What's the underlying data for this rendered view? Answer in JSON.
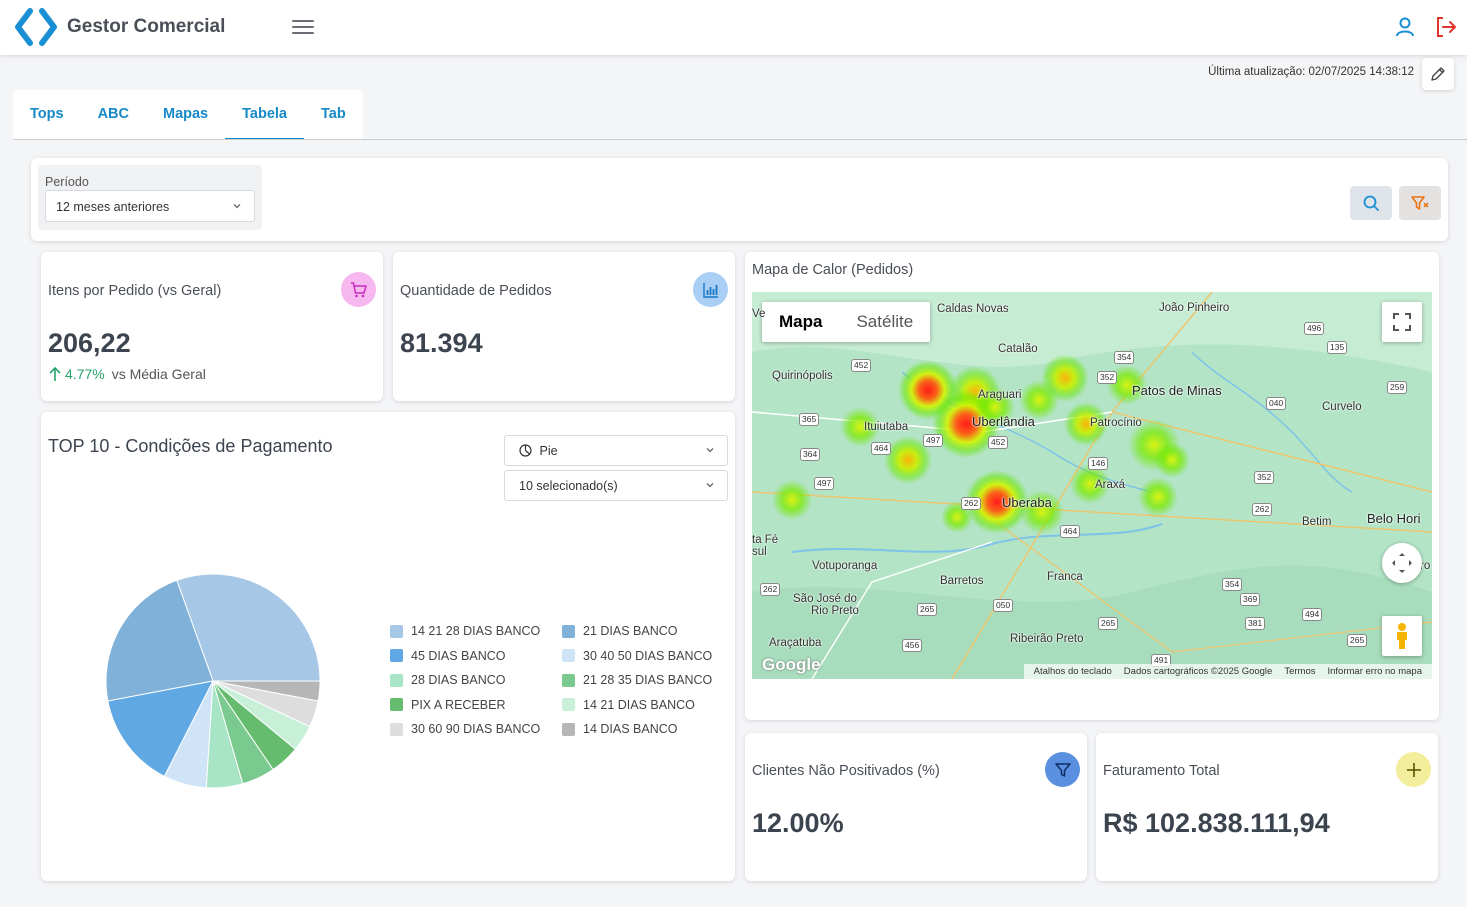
{
  "app": {
    "title": "Gestor Comercial"
  },
  "header": {
    "last_update": "Última atualização: 02/07/2025 14:38:12"
  },
  "tabs": [
    {
      "label": "Tops"
    },
    {
      "label": "ABC"
    },
    {
      "label": "Mapas"
    },
    {
      "label": "Tabela",
      "active": true
    },
    {
      "label": "Tab"
    }
  ],
  "filters": {
    "periodo_label": "Período",
    "periodo_value": "12 meses anteriores"
  },
  "kpis": {
    "itens_pedido": {
      "title": "Itens por Pedido (vs Geral)",
      "value": "206,22",
      "trend_pct": "4.77%",
      "trend_label": "vs Média Geral",
      "icon": "shopping-cart-icon",
      "color": "#f7b7ef"
    },
    "qtd_pedidos": {
      "title": "Quantidade de Pedidos",
      "value": "81.394",
      "icon": "bar-chart-icon",
      "color": "#a9cff5"
    },
    "clientes_np": {
      "title": "Clientes Não Positivados (%)",
      "value": "12.00%",
      "icon": "filter-icon",
      "color": "#5b8fe0"
    },
    "faturamento": {
      "title": "Faturamento Total",
      "value": "R$ 102.838.111,94",
      "icon": "plus-icon",
      "color": "#f3ee9c"
    }
  },
  "pie_card": {
    "title": "TOP 10 - Condições de Pagamento",
    "chart_type_value": "Pie",
    "selection_value": "10 selecionado(s)"
  },
  "chart_data": {
    "type": "pie",
    "title": "TOP 10 - Condições de Pagamento",
    "legend_position": "right",
    "categories": [
      "14 21 28 DIAS BANCO",
      "21 DIAS BANCO",
      "45 DIAS BANCO",
      "30 40 50 DIAS BANCO",
      "28 DIAS BANCO",
      "21 28 35 DIAS BANCO",
      "PIX A RECEBER",
      "14 21 DIAS BANCO",
      "30 60 90 DIAS BANCO",
      "14 DIAS BANCO"
    ],
    "values": [
      30.5,
      22.5,
      14.5,
      6.5,
      5.5,
      5.0,
      4.5,
      4.0,
      4.0,
      3.0
    ],
    "colors": [
      "#a6c8e6",
      "#7fb1d9",
      "#5fa8e3",
      "#cfe4f6",
      "#a8e5c6",
      "#7ac98e",
      "#66bc6e",
      "#c8f0d9",
      "#dddddd",
      "#b6b6b6"
    ]
  },
  "map_card": {
    "title": "Mapa de Calor (Pedidos)",
    "map_types": [
      "Mapa",
      "Satélite"
    ],
    "footer": [
      "Atalhos do teclado",
      "Dados cartográficos ©2025 Google",
      "Termos",
      "Informar erro no mapa"
    ],
    "google": "Google",
    "cities": [
      "Caldas Novas",
      "João Pinheiro",
      "Catalão",
      "Quirinópolis",
      "Patos de Minas",
      "Araguari",
      "Curvelo",
      "Ituiutaba",
      "Uberlândia",
      "Patrocínio",
      "Araxá",
      "Uberaba",
      "Belo Hori",
      "Betim",
      "ta Fé",
      "sul",
      "Votuporanga",
      "Barretos",
      "Franca",
      "São José do",
      "Rio Preto",
      "Araçatuba",
      "Ribeirão Preto",
      "ro",
      "Ve"
    ],
    "roads": [
      "496",
      "135",
      "354",
      "452",
      "352",
      "259",
      "040",
      "365",
      "497",
      "452",
      "464",
      "364",
      "146",
      "497",
      "352",
      "262",
      "262",
      "464",
      "262",
      "354",
      "369",
      "494",
      "265",
      "050",
      "265",
      "381",
      "456",
      "491",
      "265"
    ]
  }
}
